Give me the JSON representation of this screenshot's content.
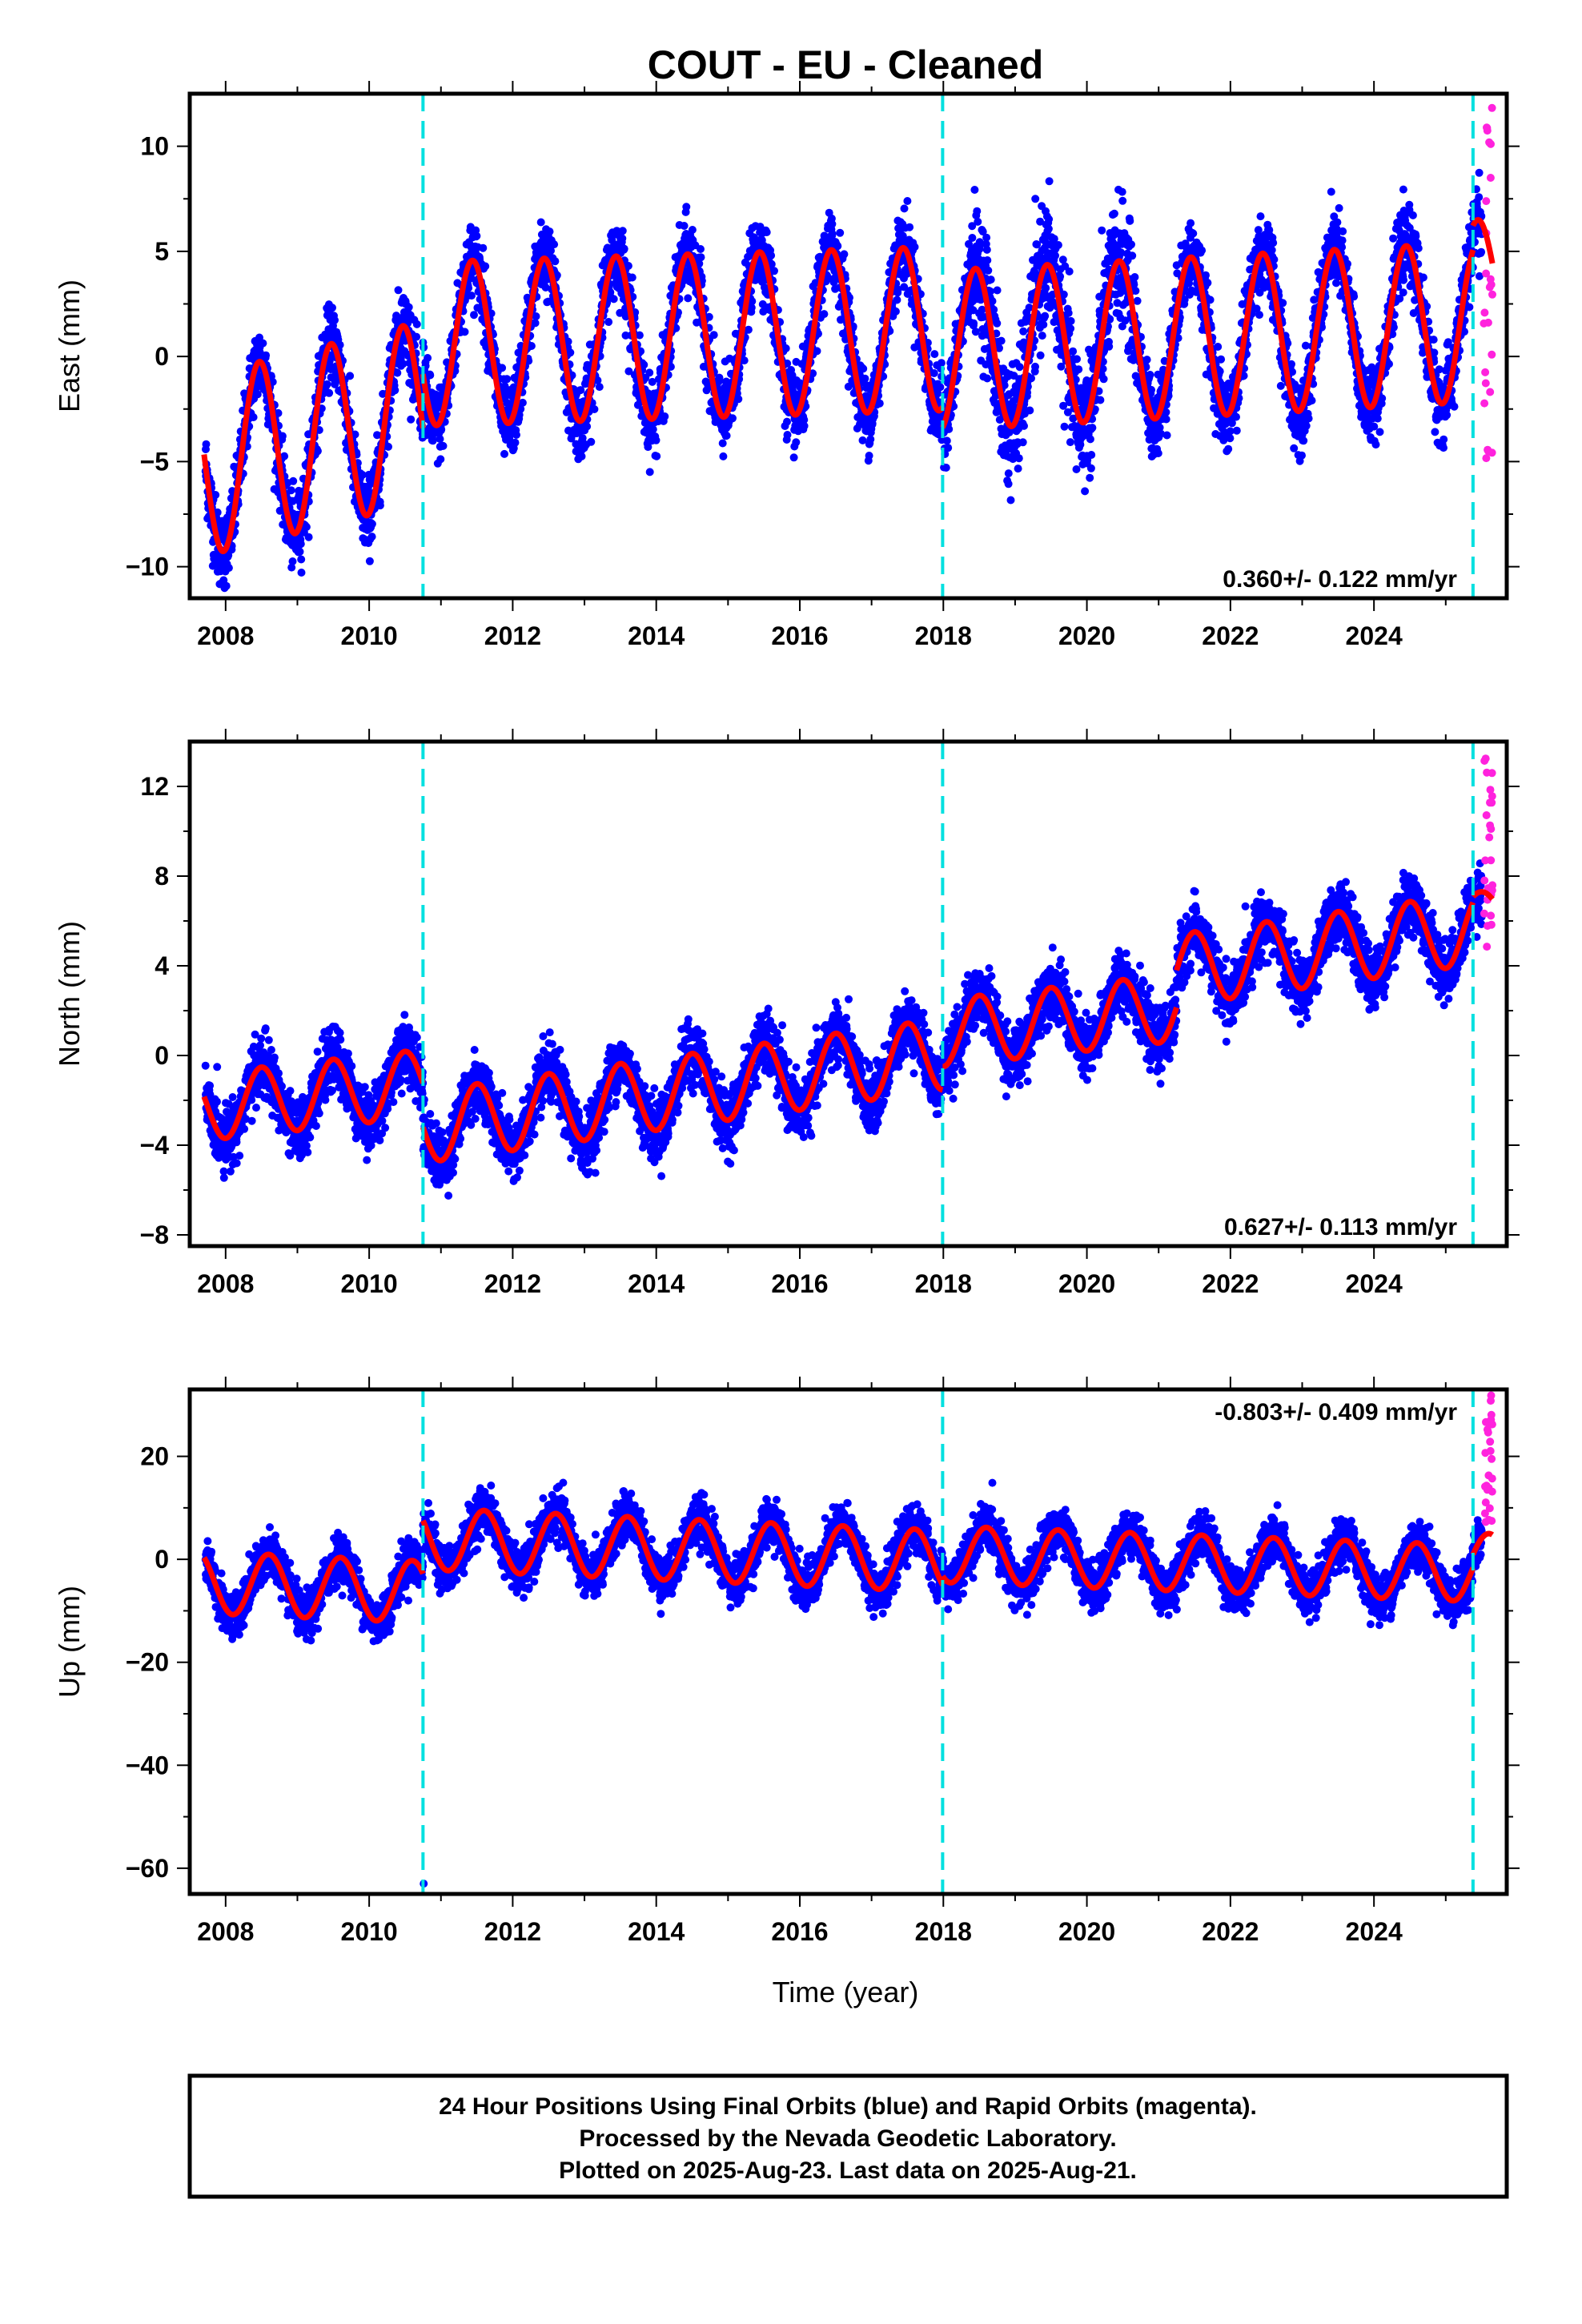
{
  "title": "COUT  - EU - Cleaned",
  "xlabel": "Time (year)",
  "footer": {
    "lines": [
      "24 Hour Positions Using Final Orbits (blue) and Rapid Orbits (magenta).",
      "Processed by the Nevada Geodetic Laboratory.",
      "Plotted on 2025-Aug-23. Last data on 2025-Aug-21."
    ]
  },
  "colors": {
    "final_orbits": "#0000ff",
    "rapid_orbits": "#ff22dd",
    "model": "#ff0000",
    "offsets": "#00e0e0"
  },
  "chart_data": [
    {
      "type": "scatter",
      "component": "East",
      "ylabel": "East (mm)",
      "xlim": [
        2007.5,
        2025.85
      ],
      "ylim": [
        -11.5,
        12.5
      ],
      "xticks": [
        2008,
        2010,
        2012,
        2014,
        2016,
        2018,
        2020,
        2022,
        2024
      ],
      "yticks": [
        -10,
        -5,
        0,
        5,
        10
      ],
      "ytick_labels": [
        "−10",
        "−5",
        "0",
        "5",
        "10"
      ],
      "rate_label": "0.360+/- 0.122 mm/yr",
      "rate_label_position": "bottom-right",
      "offset_epochs": [
        2010.75,
        2017.99,
        2025.38
      ],
      "model_segments": [
        {
          "start": 2007.7,
          "end": 2010.75,
          "offset": -5.2,
          "slope": 0.85,
          "amp": 4.3,
          "peak": 0.47
        },
        {
          "start": 2010.75,
          "end": 2017.99,
          "offset": 0.6,
          "slope": 0.1,
          "amp": 3.9,
          "peak": 0.44
        },
        {
          "start": 2017.99,
          "end": 2025.38,
          "offset": 0.3,
          "slope": 0.18,
          "amp": 3.8,
          "peak": 0.45
        },
        {
          "start": 2025.38,
          "end": 2025.65,
          "offset": 3.5,
          "slope": 0.0,
          "amp": 3.0,
          "peak": 0.45
        }
      ],
      "scatter_sigma": 1.6,
      "scatter_spikes": [
        [
          2018.4,
          2020.7,
          1.0
        ]
      ],
      "rapid_points": {
        "x_range": [
          2025.52,
          2025.65
        ],
        "y_range": [
          -5.0,
          12.0
        ]
      }
    },
    {
      "type": "scatter",
      "component": "North",
      "ylabel": "North (mm)",
      "xlim": [
        2007.5,
        2025.85
      ],
      "ylim": [
        -8.5,
        14.0
      ],
      "xticks": [
        2008,
        2010,
        2012,
        2014,
        2016,
        2018,
        2020,
        2022,
        2024
      ],
      "yticks": [
        -8,
        -4,
        0,
        4,
        8,
        12
      ],
      "ytick_labels": [
        "−8",
        "−4",
        "0",
        "4",
        "8",
        "12"
      ],
      "rate_label": "0.627+/- 0.113 mm/yr",
      "rate_label_position": "bottom-right",
      "offset_epochs": [
        2010.75,
        2017.99,
        2025.38
      ],
      "model_segments": [
        {
          "start": 2007.7,
          "end": 2010.75,
          "offset": -2.3,
          "slope": 0.35,
          "amp": 1.5,
          "peak": 0.5
        },
        {
          "start": 2010.75,
          "end": 2017.99,
          "offset": -3.2,
          "slope": 0.45,
          "amp": 1.6,
          "peak": 0.5
        },
        {
          "start": 2017.99,
          "end": 2021.25,
          "offset": 1.0,
          "slope": 0.35,
          "amp": 1.5,
          "peak": 0.5
        },
        {
          "start": 2021.25,
          "end": 2025.38,
          "offset": 3.8,
          "slope": 0.45,
          "amp": 1.6,
          "peak": 0.5
        },
        {
          "start": 2025.38,
          "end": 2025.65,
          "offset": 6.5,
          "slope": 0.0,
          "amp": 0.8,
          "peak": 0.5
        }
      ],
      "scatter_sigma": 1.2,
      "scatter_spikes": [],
      "rapid_points": {
        "x_range": [
          2025.52,
          2025.65
        ],
        "y_range": [
          4.6,
          13.4
        ]
      }
    },
    {
      "type": "scatter",
      "component": "Up",
      "ylabel": "Up (mm)",
      "xlim": [
        2007.5,
        2025.85
      ],
      "ylim": [
        -65,
        33
      ],
      "xticks": [
        2008,
        2010,
        2012,
        2014,
        2016,
        2018,
        2020,
        2022,
        2024
      ],
      "yticks": [
        -60,
        -40,
        -20,
        0,
        20
      ],
      "ytick_labels": [
        "−60",
        "−40",
        "−20",
        "0",
        "20"
      ],
      "rate_label": "-0.803+/- 0.409 mm/yr",
      "rate_label_position": "top-right",
      "offset_epochs": [
        2010.75,
        2017.99,
        2025.38
      ],
      "model_segments": [
        {
          "start": 2007.7,
          "end": 2010.75,
          "offset": -4.5,
          "slope": -0.6,
          "amp": 6.0,
          "peak": 0.6
        },
        {
          "start": 2010.75,
          "end": 2017.99,
          "offset": 4.0,
          "slope": -0.6,
          "amp": 6.0,
          "peak": 0.6
        },
        {
          "start": 2017.99,
          "end": 2025.38,
          "offset": 1.0,
          "slope": -0.5,
          "amp": 5.5,
          "peak": 0.6
        },
        {
          "start": 2025.38,
          "end": 2025.65,
          "offset": 0.0,
          "slope": 0.0,
          "amp": 5.0,
          "peak": 0.6
        }
      ],
      "scatter_sigma": 4.0,
      "scatter_spikes": [],
      "outliers": [
        [
          2010.76,
          -63.0
        ]
      ],
      "rapid_points": {
        "x_range": [
          2025.52,
          2025.65
        ],
        "y_range": [
          6.0,
          32.0
        ]
      }
    }
  ]
}
